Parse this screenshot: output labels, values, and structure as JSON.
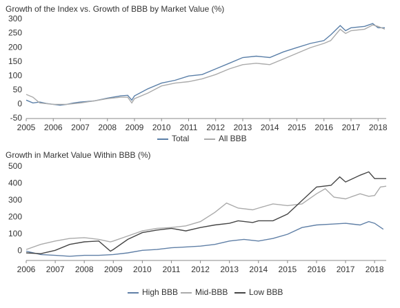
{
  "chart_data": [
    {
      "type": "line",
      "title": "Growth of the Index vs. Growth of BBB by Market Value (%)",
      "xlim": [
        2005,
        2018.3
      ],
      "xticks": [
        2005,
        2006,
        2007,
        2008,
        2009,
        2010,
        2011,
        2012,
        2013,
        2014,
        2015,
        2016,
        2017,
        2018
      ],
      "ylim": [
        -50,
        300
      ],
      "yticks": [
        -50,
        0,
        50,
        100,
        150,
        200,
        250,
        300
      ],
      "series": [
        {
          "name": "Total",
          "color": "#5a7fa8",
          "x": [
            2005,
            2005.25,
            2005.5,
            2005.75,
            2006,
            2006.25,
            2006.5,
            2006.75,
            2007,
            2007.5,
            2008,
            2008.5,
            2008.75,
            2008.9,
            2009,
            2009.5,
            2010,
            2010.5,
            2011,
            2011.5,
            2012,
            2012.5,
            2013,
            2013.5,
            2014,
            2014.5,
            2015,
            2015.5,
            2016,
            2016.25,
            2016.6,
            2016.8,
            2017,
            2017.5,
            2017.8,
            2018,
            2018.25
          ],
          "values": [
            15,
            5,
            8,
            3,
            0,
            -3,
            0,
            5,
            8,
            12,
            22,
            30,
            32,
            15,
            30,
            55,
            75,
            85,
            100,
            105,
            125,
            145,
            165,
            170,
            165,
            185,
            200,
            215,
            225,
            245,
            278,
            260,
            270,
            275,
            285,
            270,
            270
          ]
        },
        {
          "name": "All BBB",
          "color": "#aaaaaa",
          "x": [
            2005,
            2005.25,
            2005.5,
            2006,
            2006.5,
            2007,
            2007.5,
            2008,
            2008.5,
            2008.75,
            2008.9,
            2009,
            2009.5,
            2010,
            2010.5,
            2011,
            2011.5,
            2012,
            2012.5,
            2013,
            2013.5,
            2014,
            2014.5,
            2015,
            2015.5,
            2016,
            2016.25,
            2016.6,
            2016.8,
            2017,
            2017.5,
            2017.8,
            2018,
            2018.25
          ],
          "values": [
            35,
            25,
            5,
            0,
            0,
            5,
            12,
            20,
            25,
            25,
            5,
            20,
            40,
            65,
            75,
            80,
            90,
            105,
            125,
            140,
            145,
            140,
            160,
            180,
            200,
            215,
            225,
            265,
            250,
            260,
            265,
            280,
            275,
            265
          ]
        }
      ]
    },
    {
      "type": "line",
      "title": "Growth in Market Value Within BBB (%)",
      "xlim": [
        2006,
        2018.4
      ],
      "xticks": [
        2006,
        2007,
        2008,
        2009,
        2010,
        2011,
        2012,
        2013,
        2014,
        2015,
        2016,
        2017,
        2018
      ],
      "ylim": [
        -55,
        500
      ],
      "yticks": [
        0,
        100,
        200,
        300,
        400,
        500
      ],
      "series": [
        {
          "name": "High BBB",
          "color": "#5f7fa6",
          "x": [
            2006,
            2006.5,
            2007,
            2007.5,
            2008,
            2008.5,
            2009,
            2009.5,
            2010,
            2010.5,
            2011,
            2011.5,
            2012,
            2012.5,
            2013,
            2013.5,
            2014,
            2014.5,
            2015,
            2015.5,
            2016,
            2016.5,
            2017,
            2017.5,
            2017.8,
            2018,
            2018.3
          ],
          "values": [
            0,
            -20,
            -25,
            -30,
            -25,
            -25,
            -20,
            -10,
            5,
            10,
            20,
            25,
            30,
            40,
            60,
            70,
            60,
            75,
            100,
            140,
            155,
            160,
            165,
            155,
            175,
            165,
            130
          ]
        },
        {
          "name": "Mid-BBB",
          "color": "#aaaaaa",
          "x": [
            2006,
            2006.5,
            2007,
            2007.5,
            2008,
            2008.5,
            2008.9,
            2009,
            2009.5,
            2010,
            2010.5,
            2011,
            2011.5,
            2012,
            2012.5,
            2012.9,
            2013.3,
            2013.8,
            2014,
            2014.5,
            2015,
            2015.5,
            2016,
            2016.3,
            2016.6,
            2017,
            2017.5,
            2017.8,
            2018,
            2018.2,
            2018.4
          ],
          "values": [
            10,
            40,
            60,
            75,
            80,
            70,
            55,
            60,
            90,
            120,
            135,
            140,
            150,
            175,
            230,
            285,
            255,
            245,
            255,
            280,
            270,
            280,
            340,
            370,
            320,
            310,
            340,
            325,
            330,
            380,
            385
          ]
        },
        {
          "name": "Low BBB",
          "color": "#444444",
          "x": [
            2006,
            2006.5,
            2007,
            2007.5,
            2008,
            2008.5,
            2008.9,
            2009,
            2009.5,
            2010,
            2010.5,
            2011,
            2011.5,
            2012,
            2012.5,
            2013,
            2013.3,
            2013.8,
            2014,
            2014.5,
            2015,
            2015.5,
            2016,
            2016.5,
            2016.8,
            2017,
            2017.5,
            2017.8,
            2018,
            2018.4
          ],
          "values": [
            -10,
            -15,
            5,
            40,
            55,
            60,
            0,
            10,
            70,
            110,
            125,
            135,
            120,
            140,
            155,
            165,
            180,
            170,
            180,
            180,
            220,
            300,
            380,
            390,
            440,
            410,
            450,
            470,
            430,
            430
          ]
        }
      ]
    }
  ]
}
